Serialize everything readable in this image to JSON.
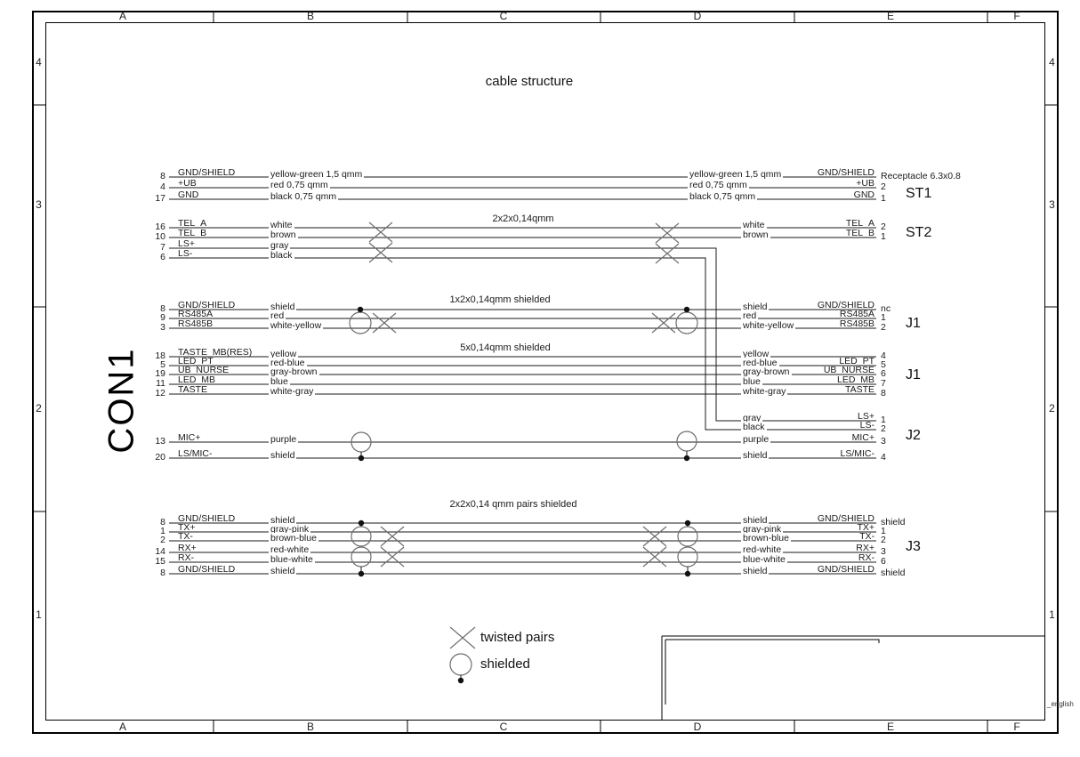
{
  "title": "cable structure",
  "con1": "CON1",
  "frame": {
    "columns": [
      "A",
      "B",
      "C",
      "D",
      "E",
      "F"
    ],
    "rows": [
      "4",
      "3",
      "2",
      "1"
    ],
    "lang_note": "_english"
  },
  "legend": {
    "items": [
      {
        "icon": "twisted-pair-icon",
        "label": "twisted pairs"
      },
      {
        "icon": "shield-icon",
        "label": "shielded"
      }
    ]
  },
  "groups": [
    {
      "id": "st1",
      "connector": "ST1",
      "cable": "",
      "wires": [
        {
          "pin": "8",
          "signal": "GND/SHIELD",
          "color_left": "yellow-green 1,5 qmm",
          "color_right": "yellow-green 1,5 qmm",
          "signal_right": "GND/SHIELD",
          "pin_right": "Receptacle 6.3x0.8"
        },
        {
          "pin": "4",
          "signal": "+UB",
          "color_left": "red 0,75 qmm",
          "color_right": "red 0,75 qmm",
          "signal_right": "+UB",
          "pin_right": "2"
        },
        {
          "pin": "17",
          "signal": "GND",
          "color_left": "black 0,75 qmm",
          "color_right": "black 0,75 qmm",
          "signal_right": "GND",
          "pin_right": "1"
        }
      ]
    },
    {
      "id": "st2",
      "connector": "ST2",
      "cable": "2x2x0,14qmm",
      "wires": [
        {
          "pin": "16",
          "signal": "TEL_A",
          "color_left": "white",
          "color_right": "white",
          "signal_right": "TEL_A",
          "pin_right": "2"
        },
        {
          "pin": "10",
          "signal": "TEL_B",
          "color_left": "brown",
          "color_right": "brown",
          "signal_right": "TEL_B",
          "pin_right": "1"
        },
        {
          "pin": "7",
          "signal": "LS+",
          "color_left": "gray"
        },
        {
          "pin": "6",
          "signal": "LS-",
          "color_left": "black"
        }
      ]
    },
    {
      "id": "j1a",
      "connector": "J1",
      "cable": "1x2x0,14qmm shielded",
      "wires": [
        {
          "pin": "8",
          "signal": "GND/SHIELD",
          "color_left": "shield",
          "color_right": "shield",
          "signal_right": "GND/SHIELD",
          "pin_right": "nc"
        },
        {
          "pin": "9",
          "signal": "RS485A",
          "color_left": "red",
          "color_right": "red",
          "signal_right": "RS485A",
          "pin_right": "1"
        },
        {
          "pin": "3",
          "signal": "RS485B",
          "color_left": "white-yellow",
          "color_right": "white-yellow",
          "signal_right": "RS485B",
          "pin_right": "2"
        }
      ]
    },
    {
      "id": "j1b",
      "connector": "J1",
      "cable": "5x0,14qmm shielded",
      "wires": [
        {
          "pin": "18",
          "signal": "TASTE_MB(RES)",
          "color_left": "yellow",
          "color_right": "yellow",
          "signal_right": "",
          "pin_right": "4"
        },
        {
          "pin": "5",
          "signal": "LED_PT",
          "color_left": "red-blue",
          "color_right": "red-blue",
          "signal_right": "LED_PT",
          "pin_right": "5"
        },
        {
          "pin": "19",
          "signal": "UB_NURSE",
          "color_left": "gray-brown",
          "color_right": "gray-brown",
          "signal_right": "UB_NURSE",
          "pin_right": "6"
        },
        {
          "pin": "11",
          "signal": "LED_MB",
          "color_left": "blue",
          "color_right": "blue",
          "signal_right": "LED_MB",
          "pin_right": "7"
        },
        {
          "pin": "12",
          "signal": "TASTE",
          "color_left": "white-gray",
          "color_right": "white-gray",
          "signal_right": "TASTE",
          "pin_right": "8"
        }
      ]
    },
    {
      "id": "j2",
      "connector": "J2",
      "cable": "",
      "wires": [
        {
          "color_right": "gray",
          "signal_right": "LS+",
          "pin_right": "1"
        },
        {
          "color_right": "black",
          "signal_right": "LS-",
          "pin_right": "2"
        },
        {
          "pin": "13",
          "signal": "MIC+",
          "color_left": "purple",
          "color_right": "purple",
          "signal_right": "MIC+",
          "pin_right": "3"
        },
        {
          "pin": "20",
          "signal": "LS/MIC-",
          "color_left": "shield",
          "color_right": "shield",
          "signal_right": "LS/MIC-",
          "pin_right": "4"
        }
      ]
    },
    {
      "id": "j3",
      "connector": "J3",
      "cable": "2x2x0,14 qmm pairs shielded",
      "wires": [
        {
          "pin": "8",
          "signal": "GND/SHIELD",
          "color_left": "shield",
          "color_right": "shield",
          "signal_right": "GND/SHIELD",
          "pin_right": "shield"
        },
        {
          "pin": "1",
          "signal": "TX+",
          "color_left": "gray-pink",
          "color_right": "gray-pink",
          "signal_right": "TX+",
          "pin_right": "1"
        },
        {
          "pin": "2",
          "signal": "TX-",
          "color_left": "brown-blue",
          "color_right": "brown-blue",
          "signal_right": "TX-",
          "pin_right": "2"
        },
        {
          "pin": "14",
          "signal": "RX+",
          "color_left": "red-white",
          "color_right": "red-white",
          "signal_right": "RX+",
          "pin_right": "3"
        },
        {
          "pin": "15",
          "signal": "RX-",
          "color_left": "blue-white",
          "color_right": "blue-white",
          "signal_right": "RX-",
          "pin_right": "6"
        },
        {
          "pin": "8",
          "signal": "GND/SHIELD",
          "color_left": "shield",
          "color_right": "shield",
          "signal_right": "GND/SHIELD",
          "pin_right": "shield"
        }
      ]
    }
  ]
}
